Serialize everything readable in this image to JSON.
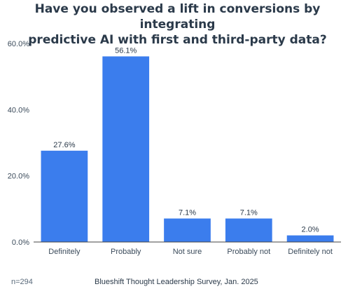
{
  "chart_data": {
    "type": "bar",
    "title": "Have you observed a lift in conversions by integrating predictive AI with first and third-party data?",
    "title_lines": [
      "Have you observed a lift in conversions by integrating",
      "predictive AI with first and third-party data?"
    ],
    "categories": [
      "Definitely",
      "Probably",
      "Not sure",
      "Probably not",
      "Definitely not"
    ],
    "values": [
      27.6,
      56.1,
      7.1,
      7.1,
      2.0
    ],
    "value_labels": [
      "27.6%",
      "56.1%",
      "7.1%",
      "7.1%",
      "2.0%"
    ],
    "y_ticks": [
      0,
      20,
      40,
      60
    ],
    "y_tick_labels": [
      "0.0%",
      "20.0%",
      "40.0%",
      "60.0%"
    ],
    "ylim": [
      0,
      60
    ],
    "xlabel": "",
    "ylabel": "",
    "grid": false,
    "bar_color": "#3b7ded",
    "sample_note": "n=294",
    "source": "Blueshift Thought Leadership Survey, Jan. 2025"
  }
}
